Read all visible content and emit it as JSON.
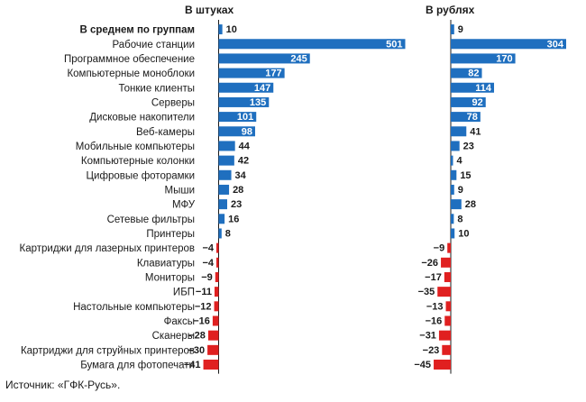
{
  "chart_data": {
    "type": "bar",
    "orientation": "horizontal",
    "colors": {
      "positive": "#1f6fbf",
      "negative": "#e02020",
      "label_inside": "#ffffff",
      "label_outside": "#1a1a1a"
    },
    "categories": [
      "В среднем по группам",
      "Рабочие станции",
      "Программное обеспечение",
      "Компьютерные моноблоки",
      "Тонкие клиенты",
      "Серверы",
      "Дисковые накопители",
      "Веб-камеры",
      "Мобильные компьютеры",
      "Компьютерные колонки",
      "Цифровые фоторамки",
      "Мыши",
      "МФУ",
      "Сетевые фильтры",
      "Принтеры",
      "Картриджи для лазерных принтеров",
      "Клавиатуры",
      "Мониторы",
      "ИБП",
      "Настольные компьютеры",
      "Факсы",
      "Сканеры",
      "Картриджи для струйных принтеров",
      "Бумага для фотопечати"
    ],
    "series": [
      {
        "name": "В штуках",
        "values": [
          10,
          501,
          245,
          177,
          147,
          135,
          101,
          98,
          44,
          42,
          34,
          28,
          23,
          16,
          8,
          -4,
          -4,
          -9,
          -11,
          -12,
          -16,
          -28,
          -30,
          -41
        ],
        "labels": [
          "10",
          "501",
          "245",
          "177",
          "147",
          "135",
          "101",
          "98",
          "44",
          "42",
          "34",
          "28",
          "23",
          "16",
          "8",
          "−4",
          "−4",
          "−9",
          "−11",
          "−12",
          "−16",
          "−28",
          "−30",
          "−41"
        ]
      },
      {
        "name": "В рублях",
        "values": [
          9,
          304,
          170,
          82,
          114,
          92,
          78,
          41,
          23,
          4,
          15,
          9,
          28,
          8,
          10,
          -9,
          -26,
          -17,
          -35,
          -13,
          -16,
          -31,
          -23,
          -45
        ],
        "labels": [
          "9",
          "304",
          "170",
          "82",
          "114",
          "92",
          "78",
          "41",
          "23",
          "4",
          "15",
          "9",
          "28",
          "8",
          "10",
          "−9",
          "−26",
          "−17",
          "−35",
          "−13",
          "−16",
          "−31",
          "−23",
          "−45"
        ]
      }
    ]
  },
  "source": "Источник: «ГФК-Русь»."
}
